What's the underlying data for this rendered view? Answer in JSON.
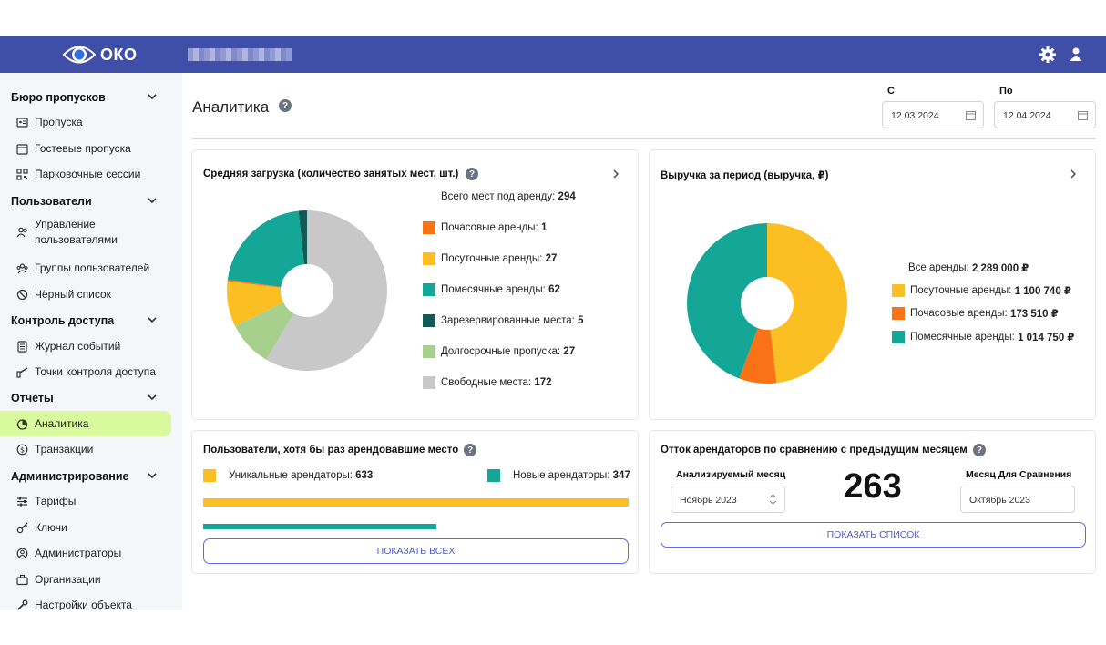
{
  "app": {
    "logo_text": "ОКО",
    "brand_color": "#3f4fa8"
  },
  "sidebar": {
    "sections": [
      {
        "title": "Бюро пропусков",
        "items": [
          {
            "label": "Пропуска",
            "icon": "id-card-icon"
          },
          {
            "label": "Гостевые пропуска",
            "icon": "calendar-icon"
          },
          {
            "label": "Парковочные сессии",
            "icon": "qr-icon"
          }
        ]
      },
      {
        "title": "Пользователи",
        "items": [
          {
            "label": "Управление пользователями",
            "icon": "users-icon"
          },
          {
            "label": "Группы пользователей",
            "icon": "group-icon"
          },
          {
            "label": "Чёрный список",
            "icon": "ban-icon"
          }
        ]
      },
      {
        "title": "Контроль доступа",
        "items": [
          {
            "label": "Журнал событий",
            "icon": "journal-icon"
          },
          {
            "label": "Точки контроля доступа",
            "icon": "barrier-icon"
          }
        ]
      },
      {
        "title": "Отчеты",
        "items": [
          {
            "label": "Аналитика",
            "icon": "analytics-icon",
            "active": true
          },
          {
            "label": "Транзакции",
            "icon": "dollar-icon"
          }
        ]
      },
      {
        "title": "Администрирование",
        "items": [
          {
            "label": "Тарифы",
            "icon": "sliders-icon"
          },
          {
            "label": "Ключи",
            "icon": "key-icon"
          },
          {
            "label": "Администраторы",
            "icon": "admin-icon"
          },
          {
            "label": "Организации",
            "icon": "briefcase-icon"
          },
          {
            "label": "Настройки объекта",
            "icon": "wrench-icon"
          }
        ]
      }
    ]
  },
  "page": {
    "title": "Аналитика"
  },
  "filters": {
    "from_label": "С",
    "from_value": "12.03.2024",
    "to_label": "По",
    "to_value": "12.04.2024"
  },
  "load_card": {
    "title": "Средняя загрузка (количество занятых мест, шт.)",
    "total_label": "Всего мест под аренду:",
    "total_value": "294",
    "legend": [
      {
        "label": "Почасовые аренды:",
        "value": "1",
        "color": "#f97316"
      },
      {
        "label": "Посуточные аренды:",
        "value": "27",
        "color": "#fbbf24"
      },
      {
        "label": "Помесячные аренды:",
        "value": "62",
        "color": "#14a697"
      },
      {
        "label": "Зарезервированные места:",
        "value": "5",
        "color": "#0f5c57"
      },
      {
        "label": "Долгосрочные пропуска:",
        "value": "27",
        "color": "#a8d08d"
      },
      {
        "label": "Свободные места:",
        "value": "172",
        "color": "#c8c8c8"
      }
    ]
  },
  "revenue_card": {
    "title": "Выручка за период (выручка, ₽)",
    "total_label": "Все аренды:",
    "total_value": "2 289 000 ₽",
    "legend": [
      {
        "label": "Посуточные аренды:",
        "value": "1 100 740 ₽",
        "color": "#fbbf24"
      },
      {
        "label": "Почасовые аренды:",
        "value": "173 510 ₽",
        "color": "#f97316"
      },
      {
        "label": "Помесячные аренды:",
        "value": "1 014 750 ₽",
        "color": "#14a697"
      }
    ]
  },
  "users_card": {
    "title": "Пользователи, хотя бы раз арендовавшие место",
    "unique_label": "Уникальные арендаторы:",
    "unique_value": "633",
    "unique_color": "#fbbf24",
    "new_label": "Новые арендаторы:",
    "new_value": "347",
    "new_color": "#14a697",
    "button": "ПОКАЗАТЬ ВСЕХ"
  },
  "churn_card": {
    "title": "Отток арендаторов по сравнению с предыдущим месяцем",
    "left_label": "Анализируемый месяц",
    "left_value": "Ноябрь 2023",
    "right_label": "Месяц Для Сравнения",
    "right_value": "Октябрь 2023",
    "number": "263",
    "button": "ПОКАЗАТЬ СПИСОК"
  },
  "chart_data": [
    {
      "type": "pie",
      "title": "Средняя загрузка (количество занятых мест, шт.)",
      "categories": [
        "Свободные места",
        "Долгосрочные пропуска",
        "Посуточные аренды",
        "Почасовые аренды",
        "Помесячные аренды",
        "Зарезервированные места"
      ],
      "values": [
        172,
        27,
        27,
        1,
        62,
        5
      ],
      "colors": [
        "#c8c8c8",
        "#a8d08d",
        "#fbbf24",
        "#f97316",
        "#14a697",
        "#0f5c57"
      ]
    },
    {
      "type": "pie",
      "title": "Выручка за период (выручка, ₽)",
      "categories": [
        "Посуточные аренды",
        "Почасовые аренды",
        "Помесячные аренды"
      ],
      "values": [
        1100740,
        173510,
        1014750
      ],
      "colors": [
        "#fbbf24",
        "#f97316",
        "#14a697"
      ]
    },
    {
      "type": "bar",
      "title": "Пользователи, хотя бы раз арендовавшие место",
      "categories": [
        "Уникальные арендаторы",
        "Новые арендаторы"
      ],
      "values": [
        633,
        347
      ],
      "colors": [
        "#fbbf24",
        "#14a697"
      ]
    }
  ]
}
